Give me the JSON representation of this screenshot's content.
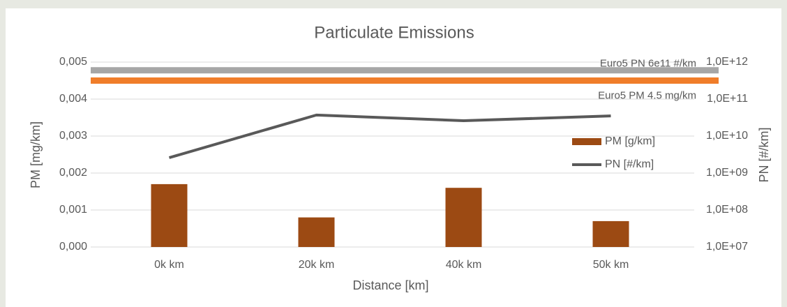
{
  "chart_data": {
    "type": "bar_line",
    "title": "Particulate Emissions",
    "x_label": "Distance [km]",
    "y_label": "PM [mg/km]",
    "y2_label": "PN [#/km]",
    "categories": [
      "0k km",
      "20k km",
      "40k km",
      "50k km"
    ],
    "series": [
      {
        "name": "PM [g/km]",
        "kind": "bar",
        "color": "#9c4a13",
        "values": [
          0.0017,
          0.0008,
          0.0016,
          0.0007
        ]
      },
      {
        "name": "PN [#/km]",
        "kind": "line",
        "axis": "y2",
        "color": "#595959",
        "values": [
          2600000000,
          37000000000,
          26000000000,
          35000000000
        ]
      }
    ],
    "reference_lines": [
      {
        "label": "Euro5 PN 6e11 #/km",
        "axis": "y2",
        "value": 600000000000,
        "color": "#a6a6a6"
      },
      {
        "label": "Euro5 PM 4.5 mg/km",
        "axis": "y",
        "value": 0.0045,
        "color": "#f07d2a"
      }
    ],
    "ylim": [
      0,
      0.005
    ],
    "yticks": [
      {
        "value": 0,
        "label": "0,000"
      },
      {
        "value": 0.001,
        "label": "0,001"
      },
      {
        "value": 0.002,
        "label": "0,002"
      },
      {
        "value": 0.003,
        "label": "0,003"
      },
      {
        "value": 0.004,
        "label": "0,004"
      },
      {
        "value": 0.005,
        "label": "0,005"
      }
    ],
    "y2lim": [
      10000000,
      1000000000000
    ],
    "y2log": true,
    "y2ticks": [
      {
        "value": 10000000,
        "label": "1,0E+07"
      },
      {
        "value": 100000000,
        "label": "1,0E+08"
      },
      {
        "value": 1000000000,
        "label": "1,0E+09"
      },
      {
        "value": 10000000000,
        "label": "1,0E+10"
      },
      {
        "value": 100000000000,
        "label": "1,0E+11"
      },
      {
        "value": 1000000000000,
        "label": "1,0E+12"
      }
    ],
    "grid": true,
    "legend": "right"
  }
}
